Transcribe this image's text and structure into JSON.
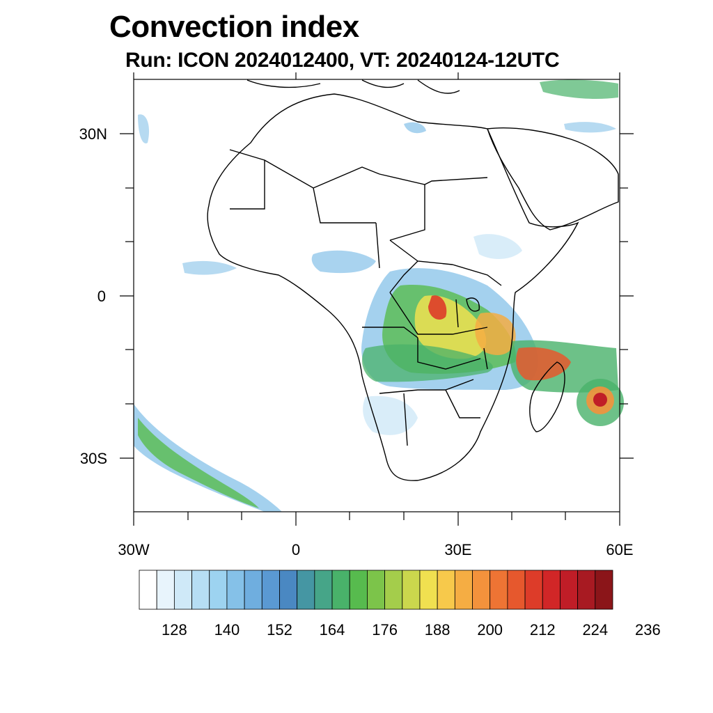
{
  "title": "Convection index",
  "subtitle": "Run: ICON 2024012400,  VT: 20240124-12UTC",
  "map": {
    "lon_range": [
      -30,
      60
    ],
    "lat_range": [
      -40,
      40
    ],
    "y_axis_labels": [
      {
        "lat": 30,
        "text": "30N"
      },
      {
        "lat": 0,
        "text": "0"
      },
      {
        "lat": -30,
        "text": "30S"
      }
    ],
    "x_axis_labels": [
      {
        "lon": -30,
        "text": "30W"
      },
      {
        "lon": 0,
        "text": "0"
      },
      {
        "lon": 30,
        "text": "30E"
      },
      {
        "lon": 60,
        "text": "60E"
      }
    ]
  },
  "colorbar": {
    "colors": [
      "#ffffff",
      "#e8f4fc",
      "#cfe9f8",
      "#b6def4",
      "#9dd3f0",
      "#85c1e8",
      "#6faedf",
      "#5a99d3",
      "#4a88c2",
      "#4596a3",
      "#46a588",
      "#49b26a",
      "#57bb4e",
      "#7cc44a",
      "#a4cd4b",
      "#cbd74d",
      "#f0e050",
      "#f7c94b",
      "#f5ad43",
      "#f3923c",
      "#ee7434",
      "#e6582d",
      "#dd3c29",
      "#d12627",
      "#c01d27",
      "#a81a22",
      "#8b1519"
    ],
    "labels": [
      "128",
      "140",
      "152",
      "164",
      "176",
      "188",
      "200",
      "212",
      "224",
      "236"
    ]
  }
}
